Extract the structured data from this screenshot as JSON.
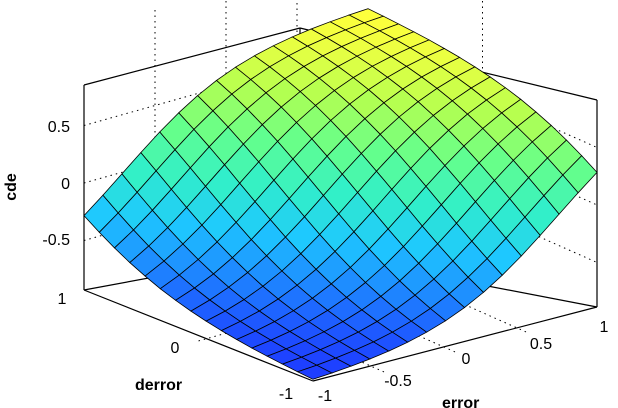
{
  "chart_data": {
    "type": "surface",
    "title": "",
    "xlabel": "error",
    "ylabel": "derror",
    "zlabel": "cde",
    "xlim": [
      -1,
      1
    ],
    "ylim": [
      -1,
      1
    ],
    "zlim": [
      -0.85,
      0.85
    ],
    "x_ticks": [
      "-1",
      "-0.5",
      "0",
      "0.5",
      "1"
    ],
    "y_ticks": [
      "-1",
      "0",
      "1"
    ],
    "z_ticks": [
      "-0.5",
      "0",
      "0.5"
    ],
    "x": [
      -1,
      -0.8667,
      -0.7333,
      -0.6,
      -0.4667,
      -0.3333,
      -0.2,
      -0.0667,
      0.0667,
      0.2,
      0.3333,
      0.4667,
      0.6,
      0.7333,
      0.8667,
      1
    ],
    "y": [
      -1,
      -0.8667,
      -0.7333,
      -0.6,
      -0.4667,
      -0.3333,
      -0.2,
      -0.0667,
      0.0667,
      0.2,
      0.3333,
      0.4667,
      0.6,
      0.7333,
      0.8667,
      1
    ],
    "z_model": "cde ≈ 0.82 * tanh(1.25*error + 0.9*derror) / tanh(2.15)",
    "z_range": [
      -0.82,
      0.82
    ],
    "colormap": [
      "#1e3cff",
      "#1e82ff",
      "#1ec8ff",
      "#32f0c8",
      "#64ff8c",
      "#b4ff50",
      "#ffff3c"
    ],
    "grid": true
  }
}
